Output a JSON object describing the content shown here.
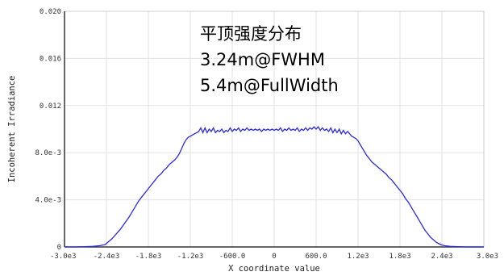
{
  "chart_data": {
    "type": "line",
    "title": "",
    "xlabel": "X coordinate value",
    "ylabel": "Incoherent Irradiance",
    "xlim": [
      -3000,
      3000
    ],
    "ylim": [
      0,
      0.02
    ],
    "grid": true,
    "x_ticks": [
      -3000,
      -2400,
      -1800,
      -1200,
      -600,
      0,
      600,
      1200,
      1800,
      2400,
      3000
    ],
    "x_tick_labels": [
      "-3.0e3",
      "-2.4e3",
      "-1.8e3",
      "-1.2e3",
      "-600.0",
      "0",
      "600.0",
      "1.2e3",
      "1.8e3",
      "2.4e3",
      "3.0e3"
    ],
    "y_ticks": [
      0,
      0.004,
      0.008,
      0.012,
      0.016,
      0.02
    ],
    "y_tick_labels": [
      "0",
      "4.0e-3",
      "8.0e-3",
      "0.012",
      "0.016",
      "0.020"
    ],
    "annotations": [
      "平顶强度分布",
      "3.24m@FWHM",
      "5.4m@FullWidth"
    ],
    "series": [
      {
        "color": "#2a2ae6",
        "points": [
          [
            -3000,
            0.0
          ],
          [
            -2850,
            0.0
          ],
          [
            -2700,
            2e-05
          ],
          [
            -2600,
            5e-05
          ],
          [
            -2500,
            0.0001
          ],
          [
            -2420,
            0.0002
          ],
          [
            -2380,
            0.0004
          ],
          [
            -2320,
            0.0007
          ],
          [
            -2260,
            0.0011
          ],
          [
            -2200,
            0.0015
          ],
          [
            -2140,
            0.002
          ],
          [
            -2080,
            0.0025
          ],
          [
            -2030,
            0.003
          ],
          [
            -1980,
            0.0035
          ],
          [
            -1940,
            0.0039
          ],
          [
            -1900,
            0.0042
          ],
          [
            -1860,
            0.0045
          ],
          [
            -1820,
            0.0048
          ],
          [
            -1780,
            0.0051
          ],
          [
            -1740,
            0.0054
          ],
          [
            -1700,
            0.0057
          ],
          [
            -1660,
            0.006
          ],
          [
            -1620,
            0.0062
          ],
          [
            -1580,
            0.0065
          ],
          [
            -1540,
            0.0067
          ],
          [
            -1500,
            0.007
          ],
          [
            -1460,
            0.0072
          ],
          [
            -1420,
            0.0074
          ],
          [
            -1380,
            0.0077
          ],
          [
            -1350,
            0.008
          ],
          [
            -1320,
            0.0084
          ],
          [
            -1290,
            0.0088
          ],
          [
            -1260,
            0.0091
          ],
          [
            -1230,
            0.0093
          ],
          [
            -1200,
            0.0094
          ],
          [
            -1170,
            0.0095
          ],
          [
            -1140,
            0.0096
          ],
          [
            -1110,
            0.0097
          ],
          [
            -1080,
            0.0098
          ],
          [
            -1050,
            0.0101
          ],
          [
            -1020,
            0.0097
          ],
          [
            -990,
            0.0101
          ],
          [
            -960,
            0.0097
          ],
          [
            -930,
            0.01
          ],
          [
            -900,
            0.0098
          ],
          [
            -870,
            0.0101
          ],
          [
            -840,
            0.0097
          ],
          [
            -810,
            0.0099
          ],
          [
            -780,
            0.0098
          ],
          [
            -750,
            0.01
          ],
          [
            -720,
            0.0097
          ],
          [
            -690,
            0.0099
          ],
          [
            -660,
            0.0098
          ],
          [
            -630,
            0.0101
          ],
          [
            -600,
            0.0098
          ],
          [
            -570,
            0.01
          ],
          [
            -540,
            0.0099
          ],
          [
            -510,
            0.0101
          ],
          [
            -480,
            0.0098
          ],
          [
            -450,
            0.01
          ],
          [
            -420,
            0.0099
          ],
          [
            -390,
            0.0101
          ],
          [
            -360,
            0.0099
          ],
          [
            -330,
            0.01
          ],
          [
            -300,
            0.0099
          ],
          [
            -270,
            0.01
          ],
          [
            -240,
            0.0099
          ],
          [
            -210,
            0.01
          ],
          [
            -180,
            0.0098
          ],
          [
            -150,
            0.01
          ],
          [
            -120,
            0.0099
          ],
          [
            -90,
            0.01
          ],
          [
            -60,
            0.0099
          ],
          [
            -30,
            0.01
          ],
          [
            0,
            0.0099
          ],
          [
            30,
            0.01
          ],
          [
            60,
            0.0099
          ],
          [
            90,
            0.0101
          ],
          [
            120,
            0.0098
          ],
          [
            150,
            0.01
          ],
          [
            180,
            0.0099
          ],
          [
            210,
            0.0101
          ],
          [
            240,
            0.0099
          ],
          [
            270,
            0.01
          ],
          [
            300,
            0.0099
          ],
          [
            330,
            0.0101
          ],
          [
            360,
            0.0098
          ],
          [
            390,
            0.01
          ],
          [
            420,
            0.0099
          ],
          [
            450,
            0.0101
          ],
          [
            480,
            0.0099
          ],
          [
            510,
            0.0101
          ],
          [
            540,
            0.01
          ],
          [
            570,
            0.0102
          ],
          [
            600,
            0.01
          ],
          [
            630,
            0.0102
          ],
          [
            660,
            0.0099
          ],
          [
            690,
            0.0101
          ],
          [
            720,
            0.0099
          ],
          [
            750,
            0.01
          ],
          [
            780,
            0.0098
          ],
          [
            810,
            0.0101
          ],
          [
            840,
            0.0097
          ],
          [
            870,
            0.01
          ],
          [
            900,
            0.0097
          ],
          [
            930,
            0.01
          ],
          [
            960,
            0.0096
          ],
          [
            990,
            0.0099
          ],
          [
            1020,
            0.0096
          ],
          [
            1050,
            0.0098
          ],
          [
            1080,
            0.0096
          ],
          [
            1110,
            0.0094
          ],
          [
            1140,
            0.0093
          ],
          [
            1170,
            0.0092
          ],
          [
            1200,
            0.009
          ],
          [
            1230,
            0.0087
          ],
          [
            1260,
            0.0084
          ],
          [
            1290,
            0.0081
          ],
          [
            1320,
            0.0078
          ],
          [
            1360,
            0.0075
          ],
          [
            1400,
            0.0072
          ],
          [
            1440,
            0.007
          ],
          [
            1480,
            0.0068
          ],
          [
            1520,
            0.0066
          ],
          [
            1560,
            0.0064
          ],
          [
            1600,
            0.0062
          ],
          [
            1640,
            0.0059
          ],
          [
            1680,
            0.0057
          ],
          [
            1720,
            0.0054
          ],
          [
            1760,
            0.0051
          ],
          [
            1800,
            0.0048
          ],
          [
            1840,
            0.0045
          ],
          [
            1880,
            0.0041
          ],
          [
            1920,
            0.0038
          ],
          [
            1960,
            0.0034
          ],
          [
            2000,
            0.003
          ],
          [
            2040,
            0.0026
          ],
          [
            2080,
            0.0022
          ],
          [
            2120,
            0.0018
          ],
          [
            2160,
            0.0014
          ],
          [
            2200,
            0.0011
          ],
          [
            2240,
            0.0008
          ],
          [
            2280,
            0.0006
          ],
          [
            2320,
            0.0004
          ],
          [
            2380,
            0.0002
          ],
          [
            2440,
            0.0001
          ],
          [
            2520,
            5e-05
          ],
          [
            2620,
            2e-05
          ],
          [
            2750,
            0.0
          ],
          [
            2900,
            0.0
          ],
          [
            3000,
            0.0
          ]
        ]
      }
    ]
  }
}
